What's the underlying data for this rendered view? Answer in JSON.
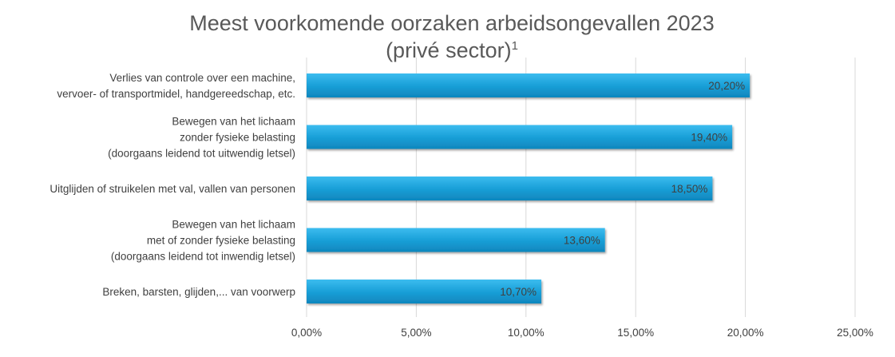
{
  "chart_data": {
    "type": "bar",
    "orientation": "horizontal",
    "title": "Meest voorkomende oorzaken arbeidsongevallen 2023",
    "subtitle": "(privé sector)",
    "subtitle_sup": "1",
    "categories": [
      [
        "Verlies van controle over een machine,",
        "vervoer- of transportmidel, handgereedschap, etc."
      ],
      [
        "Bewegen van het lichaam",
        "zonder fysieke belasting",
        "(doorgaans leidend tot uitwendig letsel)"
      ],
      [
        "Uitglijden of struikelen met val, vallen van personen"
      ],
      [
        "Bewegen van het lichaam",
        "met of zonder fysieke belasting",
        "(doorgaans leidend tot inwendig letsel)"
      ],
      [
        "Breken, barsten, glijden,... van voorwerp"
      ]
    ],
    "values": [
      20.2,
      19.4,
      18.5,
      13.6,
      10.7
    ],
    "value_labels": [
      "20,20%",
      "19,40%",
      "18,50%",
      "13,60%",
      "10,70%"
    ],
    "xlim": [
      0,
      25
    ],
    "xticks": [
      "0,00%",
      "5,00%",
      "10,00%",
      "15,00%",
      "20,00%",
      "25,00%"
    ],
    "grid": true,
    "legend": "none",
    "bar_color": "#1aa0d8"
  }
}
